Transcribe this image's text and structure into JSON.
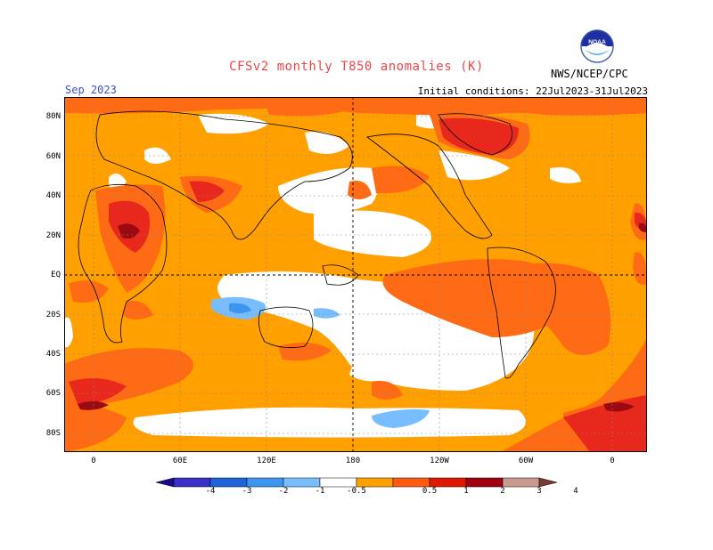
{
  "title": "CFSv2 monthly T850 anomalies (K)",
  "forecast_month": "Sep 2023",
  "initial_conditions": "Initial conditions: 22Jul2023-31Jul2023",
  "agency": "NWS/NCEP/CPC",
  "logo_text": "NOAA",
  "lat_labels": [
    "80N",
    "60N",
    "40N",
    "20N",
    "EQ",
    "20S",
    "40S",
    "60S",
    "80S"
  ],
  "lon_labels": [
    "0",
    "60E",
    "120E",
    "180",
    "120W",
    "60W",
    "0"
  ],
  "colorbar": {
    "labels": [
      "-4",
      "-3",
      "-2",
      "-1",
      "-0.5",
      "0.5",
      "1",
      "2",
      "3",
      "4"
    ],
    "colors": [
      "#1a0b8e",
      "#3a30c8",
      "#1e64d8",
      "#3c96f0",
      "#78beff",
      "#ffffff",
      "#ffa000",
      "#ff5a10",
      "#e01800",
      "#a00010",
      "#c89a90",
      "#7a3a30"
    ]
  },
  "palette": {
    "warm_05": "#ffa000",
    "warm_1": "#ff6a14",
    "warm_2": "#e8281c",
    "warm_3": "#9a0a10",
    "cool_05": "#78beff",
    "cool_1": "#3c96f0",
    "neutral": "#ffffff"
  }
}
